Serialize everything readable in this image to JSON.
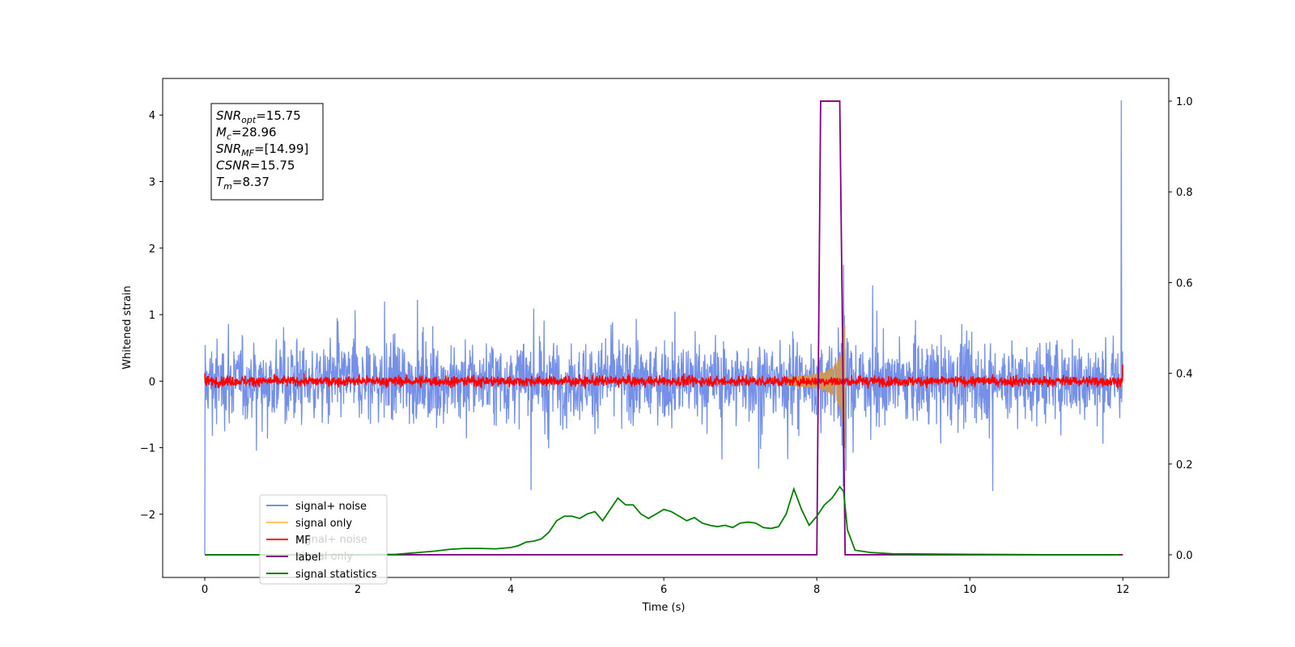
{
  "chart_data": {
    "type": "line",
    "xlabel": "Time (s)",
    "ylabel": "Whitened strain",
    "xlim": [
      -0.55,
      12.6
    ],
    "ylim": [
      -2.95,
      4.55
    ],
    "y2lim": [
      -0.05,
      1.05
    ],
    "xticks": [
      0,
      2,
      4,
      6,
      8,
      10,
      12
    ],
    "yticks": [
      -2,
      -1,
      0,
      1,
      2,
      3,
      4
    ],
    "y2ticks": [
      0.0,
      0.2,
      0.4,
      0.6,
      0.8,
      1.0
    ],
    "info_box": [
      {
        "name": "SNR",
        "sub": "opt",
        "value": "=15.75"
      },
      {
        "name": "M",
        "sub": "c",
        "value": "=28.96"
      },
      {
        "name": "SNR",
        "sub": "MF",
        "value": "=[14.99]"
      },
      {
        "name": "CSNR",
        "sub": "",
        "value": "=15.75"
      },
      {
        "name": "T",
        "sub": "m",
        "value": "=8.37"
      }
    ],
    "legend_position": "lower-left",
    "legend_entries": [
      {
        "label": "signal+ noise",
        "color": "#7490e8"
      },
      {
        "label": "signal only",
        "color": "#ffc560"
      },
      {
        "label": "MF",
        "color": "#ff0000"
      },
      {
        "label": "label",
        "color": "#800080"
      },
      {
        "label": "signal statistics",
        "color": "#008000"
      }
    ],
    "ghost_legend_entries": [
      "signal+ noise",
      "signal only"
    ],
    "series": [
      {
        "name": "signal+ noise",
        "axis": "left",
        "color": "#7490e8",
        "t_range": [
          0,
          12
        ],
        "amplitude_band": [
          -0.8,
          0.8
        ],
        "spikes": [
          [
            0.0,
            -2.6
          ],
          [
            11.98,
            4.22
          ],
          [
            8.35,
            1.75
          ],
          [
            8.38,
            -1.35
          ],
          [
            10.3,
            -1.65
          ]
        ]
      },
      {
        "name": "signal only",
        "axis": "left",
        "color": "#c9985d",
        "chirp_end": 8.37,
        "peak_amplitude": 1.3
      },
      {
        "name": "MF",
        "axis": "left",
        "color": "#ff0000",
        "t_range": [
          0,
          12
        ],
        "amplitude_band": [
          -0.08,
          0.08
        ]
      },
      {
        "name": "label",
        "axis": "right",
        "color": "#800080",
        "x": [
          0,
          8.0,
          8.05,
          8.3,
          8.37,
          12
        ],
        "y": [
          0,
          0,
          1,
          1,
          0,
          0
        ]
      },
      {
        "name": "signal statistics",
        "axis": "right",
        "color": "#008000",
        "x": [
          0,
          0.5,
          1.0,
          1.5,
          2.0,
          2.5,
          2.8,
          3.0,
          3.2,
          3.4,
          3.6,
          3.8,
          4.0,
          4.1,
          4.2,
          4.3,
          4.4,
          4.5,
          4.6,
          4.7,
          4.8,
          4.9,
          5.0,
          5.1,
          5.2,
          5.3,
          5.4,
          5.5,
          5.6,
          5.7,
          5.8,
          5.9,
          6.0,
          6.1,
          6.2,
          6.3,
          6.4,
          6.5,
          6.6,
          6.7,
          6.8,
          6.9,
          7.0,
          7.1,
          7.2,
          7.3,
          7.4,
          7.5,
          7.6,
          7.7,
          7.8,
          7.9,
          8.0,
          8.1,
          8.2,
          8.3,
          8.35,
          8.4,
          8.5,
          8.7,
          9.0,
          10.0,
          11.0,
          11.95
        ],
        "y": [
          0,
          0,
          0,
          0,
          0,
          0.001,
          0.005,
          0.008,
          0.012,
          0.014,
          0.014,
          0.013,
          0.016,
          0.02,
          0.028,
          0.03,
          0.035,
          0.05,
          0.075,
          0.085,
          0.085,
          0.08,
          0.09,
          0.095,
          0.075,
          0.1,
          0.125,
          0.11,
          0.11,
          0.09,
          0.08,
          0.09,
          0.1,
          0.095,
          0.085,
          0.075,
          0.082,
          0.07,
          0.065,
          0.062,
          0.065,
          0.06,
          0.07,
          0.072,
          0.07,
          0.06,
          0.058,
          0.062,
          0.09,
          0.145,
          0.1,
          0.065,
          0.085,
          0.11,
          0.125,
          0.15,
          0.14,
          0.055,
          0.01,
          0.005,
          0.002,
          0.001,
          0,
          0
        ]
      }
    ]
  }
}
